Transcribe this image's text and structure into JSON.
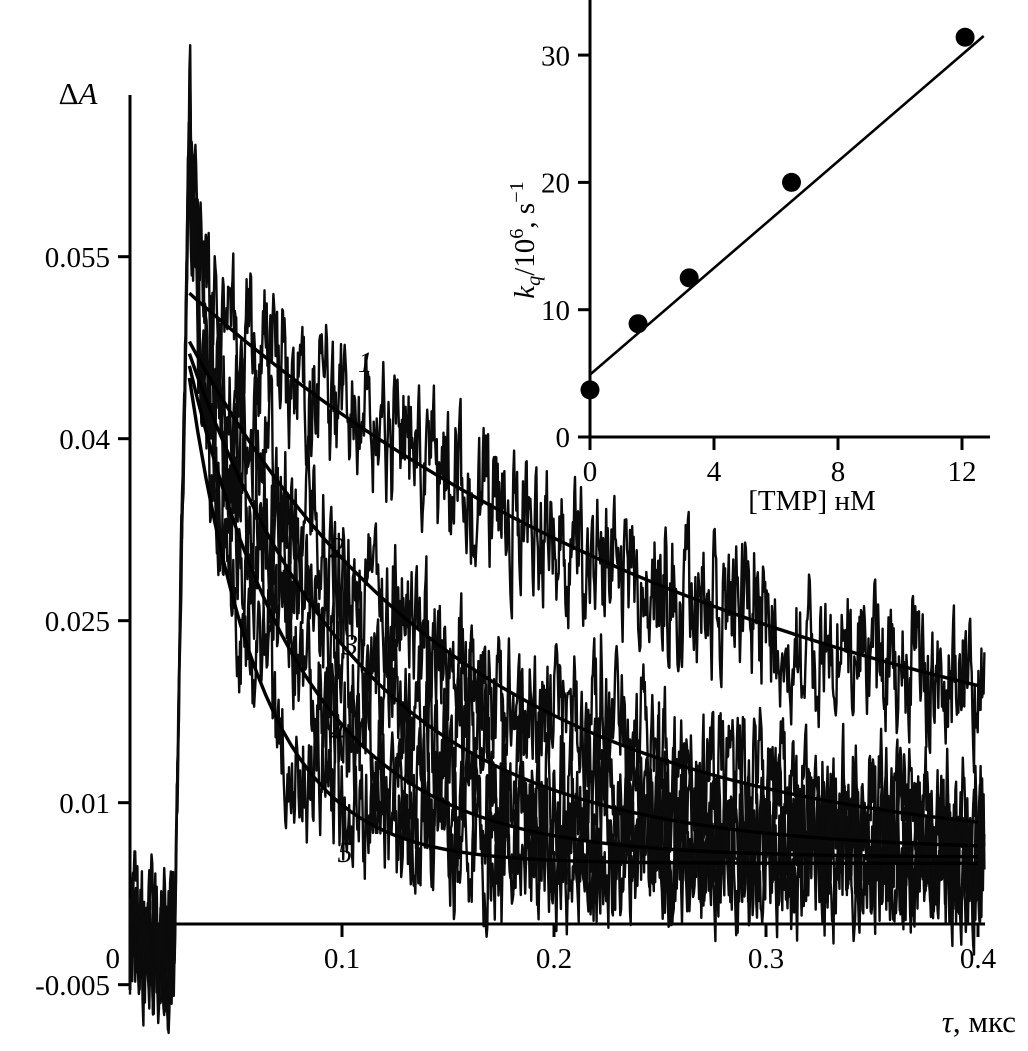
{
  "figure": {
    "background": "#ffffff",
    "ink_color": "#000000",
    "description": "Laser flash photolysis transient absorption decay kinetics (curves 1-5) with linear quenching-rate inset"
  },
  "chart_data": [
    {
      "type": "line",
      "role": "main-plot",
      "title": "",
      "xlabel": "*τ*, мкс",
      "ylabel": "Δ*A*",
      "xlim": [
        0,
        0.4
      ],
      "ylim": [
        -0.012,
        0.0685
      ],
      "xticks": [
        0,
        0.1,
        0.2,
        0.3,
        0.4
      ],
      "yticks": [
        0.055,
        0.04,
        0.025,
        0.01,
        -0.005
      ],
      "x_axis_position_y": 0,
      "grid": false,
      "legend_position": "none",
      "annotation_labels": [
        "1",
        "2",
        "3",
        "4",
        "5"
      ],
      "pretrigger_mean": -0.0015,
      "series": [
        {
          "name": "1",
          "label_pos": [
            0.111,
            0.0455
          ],
          "t0": 0.021,
          "t_peak": 0.028,
          "spike": 0.068,
          "amplitude": 0.052,
          "baseline": 0.008,
          "tau_decay": 0.28,
          "noise": 0.0045
        },
        {
          "name": "2",
          "label_pos": [
            0.0976,
            0.0302
          ],
          "t0": 0.021,
          "t_peak": 0.028,
          "spike": 0.066,
          "amplitude": 0.048,
          "baseline": 0.006,
          "tau_decay": 0.13,
          "noise": 0.0045
        },
        {
          "name": "3",
          "label_pos": [
            0.104,
            0.0222
          ],
          "t0": 0.021,
          "t_peak": 0.028,
          "spike": 0.065,
          "amplitude": 0.047,
          "baseline": 0.006,
          "tau_decay": 0.082,
          "noise": 0.0045
        },
        {
          "name": "4",
          "label_pos": [
            0.0976,
            0.015
          ],
          "t0": 0.021,
          "t_peak": 0.028,
          "spike": 0.064,
          "amplitude": 0.046,
          "baseline": 0.0055,
          "tau_decay": 0.055,
          "noise": 0.0045
        },
        {
          "name": "5",
          "label_pos": [
            0.1014,
            0.0051
          ],
          "t0": 0.021,
          "t_peak": 0.028,
          "spike": 0.063,
          "amplitude": 0.045,
          "baseline": 0.005,
          "tau_decay": 0.034,
          "noise": 0.0045
        }
      ]
    },
    {
      "type": "scatter",
      "role": "inset-plot",
      "title": "",
      "xlabel": "[TMP] нМ",
      "ylabel": "*k*_{*q*}/10^{6}, s^{−1}",
      "xlim": [
        0,
        12.9
      ],
      "ylim": [
        0,
        34.3
      ],
      "xticks": [
        0,
        4,
        8,
        12
      ],
      "yticks": [
        0,
        10,
        20,
        30
      ],
      "grid": false,
      "x": [
        0,
        1.55,
        3.2,
        6.5,
        12.1
      ],
      "y": [
        3.7,
        8.9,
        12.5,
        20.0,
        31.4
      ],
      "fit_line": {
        "x1": 0,
        "y1": 4.9,
        "x2": 12.7,
        "y2": 31.5
      }
    }
  ]
}
